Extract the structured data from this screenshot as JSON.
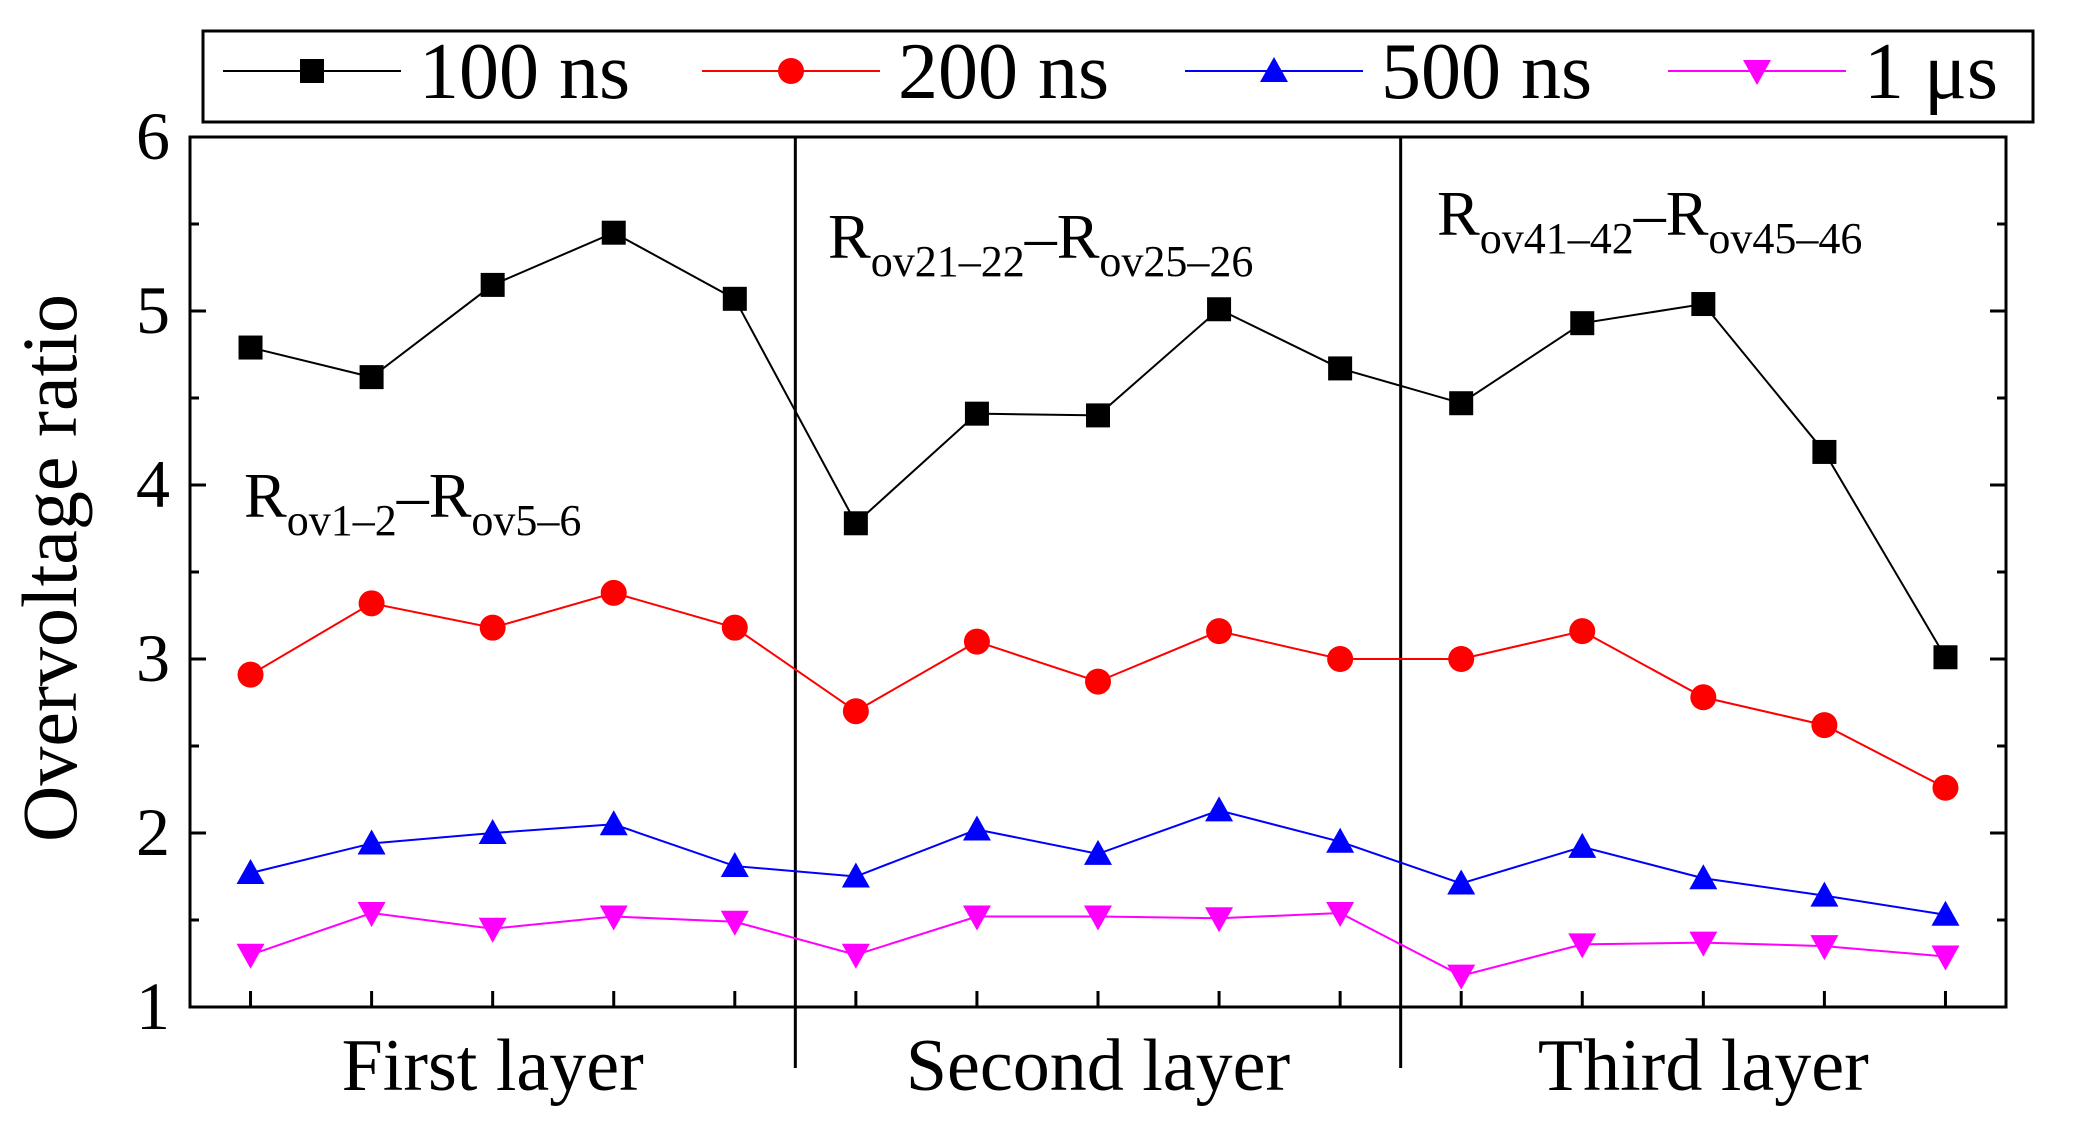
{
  "chart_data": {
    "type": "line",
    "title": "",
    "xlabel": "",
    "ylabel": "Overvoltage ratio",
    "ylim": [
      1,
      6
    ],
    "yticks": [
      "1",
      "2",
      "3",
      "4",
      "5",
      "6"
    ],
    "x_index_range": [
      0.5,
      15.5
    ],
    "group_labels": [
      "First layer",
      "Second layer",
      "Third layer"
    ],
    "region_labels": [
      {
        "base": "R",
        "sub_a": "ov1–2",
        "dash": "–",
        "base2": "R",
        "sub_b": "ov5–6"
      },
      {
        "base": "R",
        "sub_a": "ov21–22",
        "dash": "–",
        "base2": "R",
        "sub_b": "ov25–26"
      },
      {
        "base": "R",
        "sub_a": "ov41–42",
        "dash": "–",
        "base2": "R",
        "sub_b": "ov45–46"
      }
    ],
    "x": [
      1,
      2,
      3,
      4,
      5,
      6,
      7,
      8,
      9,
      10,
      11,
      12,
      13,
      14,
      15
    ],
    "series": [
      {
        "name": "100 ns",
        "color": "#000000",
        "marker": "square",
        "values": [
          4.79,
          4.62,
          5.15,
          5.45,
          5.07,
          3.78,
          4.41,
          4.4,
          5.01,
          4.67,
          4.47,
          4.93,
          5.04,
          4.19,
          3.01
        ]
      },
      {
        "name": "200 ns",
        "color": "#ff0000",
        "marker": "circle",
        "values": [
          2.91,
          3.32,
          3.18,
          3.38,
          3.18,
          2.7,
          3.1,
          2.87,
          3.16,
          3.0,
          3.0,
          3.16,
          2.78,
          2.62,
          2.26
        ]
      },
      {
        "name": "500 ns",
        "color": "#0000ff",
        "marker": "triangle-up",
        "values": [
          1.77,
          1.94,
          2.0,
          2.05,
          1.81,
          1.75,
          2.02,
          1.88,
          2.13,
          1.95,
          1.71,
          1.92,
          1.74,
          1.64,
          1.53
        ]
      },
      {
        "name": "1 μs",
        "color": "#ff00ff",
        "marker": "triangle-down",
        "values": [
          1.3,
          1.54,
          1.45,
          1.52,
          1.49,
          1.3,
          1.52,
          1.52,
          1.51,
          1.54,
          1.18,
          1.36,
          1.37,
          1.35,
          1.29
        ]
      }
    ]
  }
}
